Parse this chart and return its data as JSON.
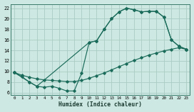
{
  "xlabel": "Humidex (Indice chaleur)",
  "bg_color": "#cde8e2",
  "grid_color": "#aaccC4",
  "line_color": "#1a6b5a",
  "xlim": [
    -0.5,
    23.5
  ],
  "ylim": [
    5.5,
    22.8
  ],
  "xticks": [
    0,
    1,
    2,
    3,
    4,
    5,
    6,
    7,
    8,
    9,
    10,
    11,
    12,
    13,
    14,
    15,
    16,
    17,
    18,
    19,
    20,
    21,
    22,
    23
  ],
  "yticks": [
    6,
    8,
    10,
    12,
    14,
    16,
    18,
    20,
    22
  ],
  "curve1_x": [
    0,
    1,
    2,
    3,
    4,
    5,
    6,
    7,
    8,
    9,
    10,
    11,
    12,
    13,
    14,
    15,
    16,
    17,
    18,
    19,
    20,
    21,
    22,
    23
  ],
  "curve1_y": [
    9.8,
    9.0,
    8.0,
    7.2,
    7.0,
    7.2,
    6.8,
    6.3,
    6.3,
    9.7,
    15.5,
    15.8,
    18.0,
    20.0,
    21.3,
    22.0,
    21.7,
    21.3,
    21.4,
    21.4,
    20.3,
    16.0,
    14.8,
    14.2
  ],
  "curve2_x": [
    0,
    2,
    3,
    10,
    11,
    12,
    13,
    14,
    15,
    16,
    17,
    18,
    19,
    20,
    21,
    22,
    23
  ],
  "curve2_y": [
    9.8,
    8.0,
    7.2,
    15.5,
    15.8,
    18.0,
    20.0,
    21.3,
    22.0,
    21.7,
    21.3,
    21.4,
    21.4,
    20.3,
    16.0,
    14.8,
    14.2
  ],
  "curve3_x": [
    0,
    1,
    2,
    3,
    4,
    5,
    6,
    7,
    8,
    9,
    10,
    11,
    12,
    13,
    14,
    15,
    16,
    17,
    18,
    19,
    20,
    21,
    22,
    23
  ],
  "curve3_y": [
    9.8,
    9.3,
    8.9,
    8.6,
    8.4,
    8.3,
    8.2,
    8.1,
    8.1,
    8.3,
    8.7,
    9.2,
    9.7,
    10.3,
    10.9,
    11.5,
    12.1,
    12.6,
    13.1,
    13.5,
    13.9,
    14.2,
    14.5,
    14.2
  ]
}
